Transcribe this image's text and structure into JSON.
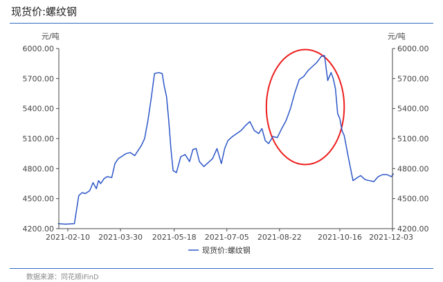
{
  "title": "现货价:螺纹钢",
  "source": "数据来源：同花顺iFinD",
  "colors": {
    "line": "#2b55c8",
    "rule": "#2e6bc4",
    "highlight": "#ee1c1c",
    "axis": "#444444"
  },
  "chart_data": {
    "type": "line",
    "title": "",
    "xlabel": "",
    "ylabel_left": "元/吨",
    "ylabel_right": "元/吨",
    "ylim": [
      4200,
      6000
    ],
    "y_ticks": [
      "4200.00",
      "4500.00",
      "4800.00",
      "5100.00",
      "5400.00",
      "5700.00",
      "6000.00"
    ],
    "x_ticks": [
      "2021-02-10",
      "2021-03-30",
      "2021-05-18",
      "2021-07-05",
      "2021-08-22",
      "2021-10-16",
      "2021-12-03"
    ],
    "legend_position": "bottom-center",
    "annotations": [
      {
        "type": "ellipse",
        "label": "",
        "x_range": [
          "2021-08-10",
          "2021-10-20"
        ],
        "y_range": [
          4840,
          5990
        ]
      }
    ],
    "series": [
      {
        "name": "现货价:螺纹钢",
        "x": [
          "2021-02-01",
          "2021-02-08",
          "2021-02-16",
          "2021-02-20",
          "2021-02-23",
          "2021-02-26",
          "2021-03-02",
          "2021-03-05",
          "2021-03-08",
          "2021-03-10",
          "2021-03-12",
          "2021-03-15",
          "2021-03-18",
          "2021-03-22",
          "2021-03-25",
          "2021-03-28",
          "2021-03-31",
          "2021-04-04",
          "2021-04-08",
          "2021-04-12",
          "2021-04-15",
          "2021-04-18",
          "2021-04-21",
          "2021-04-24",
          "2021-04-27",
          "2021-04-30",
          "2021-05-04",
          "2021-05-07",
          "2021-05-09",
          "2021-05-11",
          "2021-05-13",
          "2021-05-15",
          "2021-05-17",
          "2021-05-20",
          "2021-05-24",
          "2021-05-28",
          "2021-06-01",
          "2021-06-04",
          "2021-06-07",
          "2021-06-10",
          "2021-06-14",
          "2021-06-18",
          "2021-06-22",
          "2021-06-26",
          "2021-06-30",
          "2021-07-03",
          "2021-07-06",
          "2021-07-10",
          "2021-07-14",
          "2021-07-18",
          "2021-07-22",
          "2021-07-26",
          "2021-07-30",
          "2021-08-03",
          "2021-08-06",
          "2021-08-09",
          "2021-08-12",
          "2021-08-16",
          "2021-08-20",
          "2021-08-24",
          "2021-08-28",
          "2021-09-01",
          "2021-09-05",
          "2021-09-09",
          "2021-09-13",
          "2021-09-17",
          "2021-09-21",
          "2021-09-25",
          "2021-09-29",
          "2021-10-02",
          "2021-10-05",
          "2021-10-08",
          "2021-10-10",
          "2021-10-12",
          "2021-10-14",
          "2021-10-16",
          "2021-10-18",
          "2021-10-20",
          "2021-10-24",
          "2021-10-28",
          "2021-11-01",
          "2021-11-04",
          "2021-11-08",
          "2021-11-12",
          "2021-11-16",
          "2021-11-20",
          "2021-11-24",
          "2021-11-28",
          "2021-12-02",
          "2021-12-04"
        ],
        "values": [
          4250,
          4245,
          4250,
          4530,
          4560,
          4550,
          4580,
          4660,
          4600,
          4680,
          4650,
          4700,
          4720,
          4710,
          4850,
          4900,
          4920,
          4950,
          4960,
          4930,
          4980,
          5030,
          5100,
          5280,
          5500,
          5750,
          5760,
          5750,
          5620,
          5520,
          5280,
          5000,
          4780,
          4760,
          4920,
          4940,
          4870,
          4990,
          5000,
          4870,
          4820,
          4860,
          4900,
          5000,
          4850,
          5000,
          5080,
          5120,
          5150,
          5180,
          5230,
          5270,
          5180,
          5150,
          5200,
          5080,
          5050,
          5120,
          5110,
          5200,
          5280,
          5400,
          5560,
          5690,
          5720,
          5780,
          5820,
          5860,
          5920,
          5930,
          5680,
          5760,
          5700,
          5600,
          5350,
          5300,
          5180,
          5130,
          4900,
          4680,
          4710,
          4730,
          4690,
          4680,
          4670,
          4720,
          4740,
          4740,
          4720,
          4750
        ]
      }
    ]
  }
}
